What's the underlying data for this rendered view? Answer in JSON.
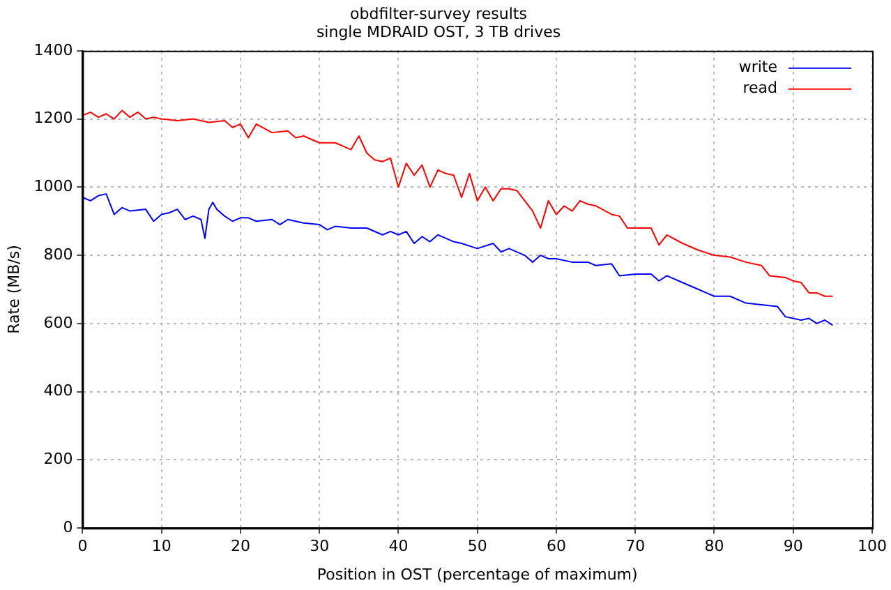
{
  "chart_data": {
    "type": "line",
    "title": "obdfilter-survey results",
    "subtitle": "single MDRAID OST, 3 TB drives",
    "xlabel": "Position in OST (percentage of maximum)",
    "ylabel": "Rate (MB/s)",
    "xlim": [
      0,
      100
    ],
    "xticks": [
      0,
      10,
      20,
      30,
      40,
      50,
      60,
      70,
      80,
      90,
      100
    ],
    "ylim": [
      0,
      1400
    ],
    "yticks": [
      0,
      200,
      400,
      600,
      800,
      1000,
      1200,
      1400
    ],
    "grid": true,
    "legend": "top right",
    "marker": "none",
    "line_style": "solid",
    "series": [
      {
        "name": "write",
        "color": "#0000ff",
        "x": [
          0,
          1,
          2,
          3,
          4,
          5,
          6,
          8,
          9,
          10,
          11,
          12,
          13,
          14,
          15,
          15.5,
          16,
          16.5,
          17,
          18,
          19,
          20,
          21,
          22,
          24,
          25,
          26,
          28,
          30,
          31,
          32,
          34,
          36,
          38,
          39,
          40,
          41,
          42,
          43,
          44,
          45,
          46,
          47,
          48,
          50,
          52,
          53,
          54,
          56,
          57,
          58,
          59,
          60,
          62,
          64,
          65,
          67,
          68,
          70,
          72,
          73,
          74,
          76,
          78,
          80,
          82,
          84,
          86,
          88,
          89,
          91,
          92,
          93,
          94,
          95
        ],
        "values": [
          970,
          960,
          975,
          980,
          920,
          940,
          930,
          935,
          900,
          920,
          925,
          935,
          905,
          915,
          905,
          850,
          935,
          955,
          935,
          915,
          900,
          910,
          910,
          900,
          905,
          890,
          905,
          895,
          890,
          875,
          885,
          880,
          880,
          860,
          870,
          860,
          870,
          835,
          855,
          840,
          860,
          850,
          840,
          835,
          820,
          835,
          810,
          820,
          800,
          780,
          800,
          790,
          790,
          780,
          780,
          770,
          775,
          740,
          745,
          745,
          725,
          740,
          720,
          700,
          680,
          680,
          660,
          655,
          650,
          620,
          610,
          615,
          600,
          610,
          595
        ]
      },
      {
        "name": "read",
        "color": "#ff0000",
        "x": [
          0,
          1,
          2,
          3,
          4,
          5,
          6,
          7,
          8,
          9,
          10,
          12,
          14,
          16,
          18,
          19,
          20,
          21,
          22,
          24,
          26,
          27,
          28,
          30,
          32,
          33,
          34,
          35,
          36,
          37,
          38,
          39,
          40,
          41,
          42,
          43,
          44,
          45,
          46,
          47,
          48,
          49,
          50,
          51,
          52,
          53,
          54,
          55,
          56,
          57,
          58,
          59,
          60,
          61,
          62,
          63,
          64,
          65,
          67,
          68,
          69,
          72,
          73,
          74,
          76,
          78,
          80,
          82,
          84,
          86,
          87,
          89,
          90,
          91,
          92,
          93,
          94,
          95
        ],
        "values": [
          1210,
          1220,
          1205,
          1215,
          1200,
          1225,
          1205,
          1220,
          1200,
          1205,
          1200,
          1195,
          1200,
          1190,
          1195,
          1175,
          1185,
          1145,
          1185,
          1160,
          1165,
          1145,
          1150,
          1130,
          1130,
          1120,
          1110,
          1150,
          1100,
          1080,
          1075,
          1085,
          1000,
          1070,
          1035,
          1065,
          1000,
          1050,
          1040,
          1035,
          970,
          1040,
          960,
          1000,
          960,
          995,
          995,
          990,
          960,
          930,
          880,
          960,
          920,
          945,
          930,
          960,
          950,
          945,
          920,
          915,
          880,
          880,
          830,
          860,
          835,
          815,
          800,
          795,
          780,
          770,
          740,
          735,
          725,
          720,
          690,
          690,
          680,
          680
        ]
      }
    ]
  }
}
